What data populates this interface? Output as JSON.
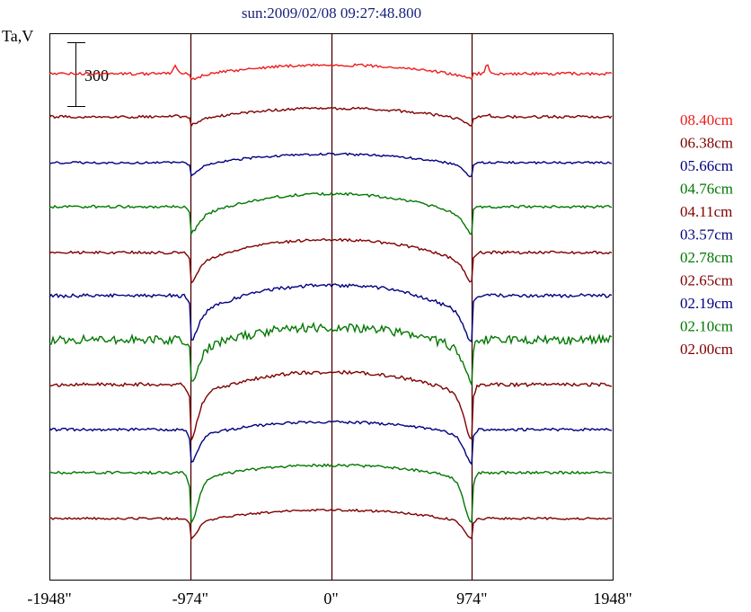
{
  "chart_data": {
    "type": "line",
    "title": "sun:2009/02/08 09:27:48.800",
    "ylabel": "Ta,V",
    "scale_bar_label": "300",
    "scale_bar_value": 300,
    "xlim": [
      -1948,
      1948
    ],
    "x_ticks": [
      {
        "value": -1948,
        "label": "-1948\""
      },
      {
        "value": -974,
        "label": "-974\""
      },
      {
        "value": 0,
        "label": "0\""
      },
      {
        "value": 974,
        "label": "974\""
      },
      {
        "value": 1948,
        "label": "1948\""
      }
    ],
    "vertical_lines": [
      -974,
      0,
      974
    ],
    "colors": {
      "title": "#1a237e",
      "axes": "#000000",
      "guide": "#4a0000"
    },
    "series": [
      {
        "name": "08.40cm",
        "color": "#ee1c1c",
        "offset": 82,
        "depth": 8,
        "limb": 2,
        "noise": 1.5,
        "prelimb": 9
      },
      {
        "name": "06.38cm",
        "color": "#800000",
        "offset": 130,
        "depth": 9,
        "limb": 4,
        "noise": 1.5,
        "prelimb": 3
      },
      {
        "name": "05.66cm",
        "color": "#000080",
        "offset": 181,
        "depth": 10,
        "limb": 10,
        "noise": 1.2,
        "prelimb": 0
      },
      {
        "name": "04.76cm",
        "color": "#007800",
        "offset": 230,
        "depth": 28,
        "limb": 15,
        "noise": 1.5,
        "prelimb": 0
      },
      {
        "name": "04.11cm",
        "color": "#800000",
        "offset": 281,
        "depth": 28,
        "limb": 18,
        "noise": 1.5,
        "prelimb": 0
      },
      {
        "name": "03.57cm",
        "color": "#000080",
        "offset": 329,
        "depth": 48,
        "limb": 25,
        "noise": 2.0,
        "prelimb": 0
      },
      {
        "name": "02.78cm",
        "color": "#007800",
        "offset": 378,
        "depth": 30,
        "limb": 30,
        "noise": 5.0,
        "prelimb": 0
      },
      {
        "name": "02.65cm",
        "color": "#800000",
        "offset": 428,
        "depth": 30,
        "limb": 45,
        "noise": 2.0,
        "prelimb": 0
      },
      {
        "name": "02.19cm",
        "color": "#000080",
        "offset": 478,
        "depth": 18,
        "limb": 28,
        "noise": 1.5,
        "prelimb": 0
      },
      {
        "name": "02.10cm",
        "color": "#007800",
        "offset": 526,
        "depth": 19,
        "limb": 46,
        "noise": 1.5,
        "prelimb": 0
      },
      {
        "name": "02.00cm",
        "color": "#800000",
        "offset": 577,
        "depth": 10,
        "limb": 17,
        "noise": 1.2,
        "prelimb": 0
      }
    ]
  }
}
